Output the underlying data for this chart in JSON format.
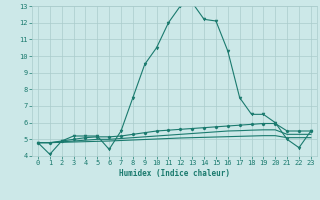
{
  "xlabel": "Humidex (Indice chaleur)",
  "x": [
    0,
    1,
    2,
    3,
    4,
    5,
    6,
    7,
    8,
    9,
    10,
    11,
    12,
    13,
    14,
    15,
    16,
    17,
    18,
    19,
    20,
    21,
    22,
    23
  ],
  "line1": [
    4.8,
    4.1,
    4.9,
    5.2,
    5.2,
    5.2,
    4.4,
    5.5,
    7.5,
    9.5,
    10.5,
    12.0,
    13.0,
    13.2,
    12.2,
    12.1,
    10.3,
    7.5,
    6.5,
    6.5,
    6.0,
    5.0,
    4.5,
    5.5
  ],
  "line2": [
    4.8,
    4.8,
    4.9,
    5.0,
    5.1,
    5.15,
    5.15,
    5.2,
    5.3,
    5.4,
    5.5,
    5.55,
    5.6,
    5.65,
    5.7,
    5.75,
    5.8,
    5.85,
    5.9,
    5.95,
    5.95,
    5.5,
    5.5,
    5.5
  ],
  "line3": [
    4.8,
    4.8,
    4.85,
    4.9,
    4.95,
    5.0,
    5.0,
    5.05,
    5.1,
    5.15,
    5.2,
    5.25,
    5.3,
    5.35,
    5.4,
    5.45,
    5.5,
    5.52,
    5.55,
    5.57,
    5.57,
    5.3,
    5.3,
    5.3
  ],
  "line4": [
    4.8,
    4.8,
    4.82,
    4.84,
    4.86,
    4.88,
    4.9,
    4.93,
    4.96,
    4.99,
    5.02,
    5.05,
    5.08,
    5.1,
    5.12,
    5.14,
    5.16,
    5.18,
    5.2,
    5.22,
    5.22,
    5.1,
    5.1,
    5.1
  ],
  "line_color": "#1a7a6e",
  "bg_color": "#cce8e8",
  "grid_color": "#aacccc",
  "ylim": [
    4,
    13
  ],
  "xlim_min": -0.5,
  "xlim_max": 23.5,
  "yticks": [
    4,
    5,
    6,
    7,
    8,
    9,
    10,
    11,
    12,
    13
  ],
  "xticks": [
    0,
    1,
    2,
    3,
    4,
    5,
    6,
    7,
    8,
    9,
    10,
    11,
    12,
    13,
    14,
    15,
    16,
    17,
    18,
    19,
    20,
    21,
    22,
    23
  ],
  "tick_fontsize": 5.0,
  "xlabel_fontsize": 5.5
}
